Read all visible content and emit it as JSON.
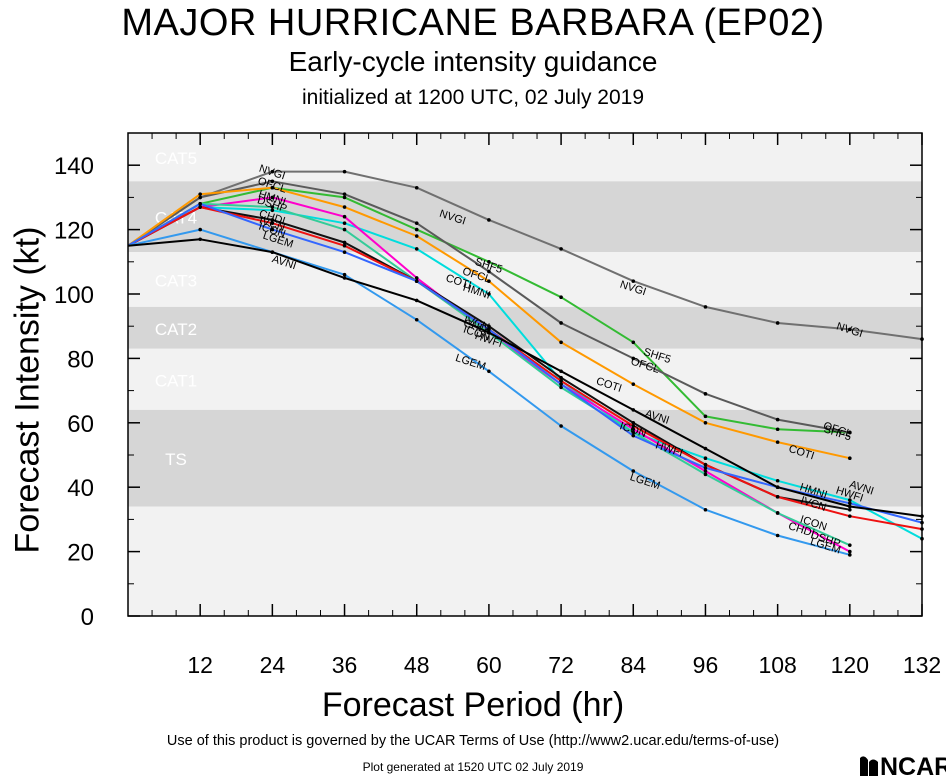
{
  "chart_data": {
    "type": "line",
    "title": "MAJOR HURRICANE BARBARA (EP02)",
    "subtitle": "Early-cycle intensity guidance",
    "subtitle2": "initialized at 1200 UTC, 02 July 2019",
    "xlabel": "Forecast Period (hr)",
    "ylabel": "Forecast Intensity (kt)",
    "xlim": [
      0,
      132
    ],
    "ylim": [
      0,
      150
    ],
    "xticks": [
      12,
      24,
      36,
      48,
      60,
      72,
      84,
      96,
      108,
      120,
      132
    ],
    "yticks": [
      0,
      20,
      40,
      60,
      80,
      100,
      120,
      140
    ],
    "categories": [
      {
        "name": "CAT5",
        "min": 135,
        "max": 150,
        "color": "#f2f2f2"
      },
      {
        "name": "CAT4",
        "min": 113,
        "max": 135,
        "color": "#d6d6d6"
      },
      {
        "name": "CAT3",
        "min": 96,
        "max": 113,
        "color": "#f2f2f2"
      },
      {
        "name": "CAT2",
        "min": 83,
        "max": 96,
        "color": "#d6d6d6"
      },
      {
        "name": "CAT1",
        "min": 64,
        "max": 83,
        "color": "#f2f2f2"
      },
      {
        "name": "TS",
        "min": 34,
        "max": 64,
        "color": "#d6d6d6"
      },
      {
        "name": "",
        "min": 0,
        "max": 34,
        "color": "#f2f2f2"
      }
    ],
    "series": [
      {
        "name": "NVGI",
        "color": "#707070",
        "x": [
          0,
          12,
          24,
          36,
          48,
          60,
          72,
          84,
          96,
          108,
          120,
          132
        ],
        "values": [
          115,
          130,
          138,
          138,
          133,
          123,
          114,
          104,
          96,
          91,
          89,
          86
        ],
        "labels": [
          {
            "x": 24,
            "y": 138
          },
          {
            "x": 54,
            "y": 124
          },
          {
            "x": 84,
            "y": 102
          },
          {
            "x": 120,
            "y": 89
          }
        ]
      },
      {
        "name": "SHF5",
        "color": "#33bb33",
        "x": [
          0,
          12,
          24,
          36,
          48,
          60,
          72,
          84,
          96,
          108,
          120
        ],
        "values": [
          115,
          128,
          133,
          130,
          120,
          110,
          99,
          85,
          62,
          58,
          57
        ],
        "labels": [
          {
            "x": 60,
            "y": 109
          },
          {
            "x": 88,
            "y": 81
          },
          {
            "x": 118,
            "y": 57
          }
        ]
      },
      {
        "name": "OFCL",
        "color": "#5a5a5a",
        "x": [
          0,
          12,
          24,
          36,
          48,
          60,
          72,
          84,
          96,
          108,
          120
        ],
        "values": [
          115,
          130,
          135,
          131,
          122,
          107,
          91,
          80,
          69,
          61,
          57
        ],
        "labels": [
          {
            "x": 24,
            "y": 134
          },
          {
            "x": 58,
            "y": 106
          },
          {
            "x": 86,
            "y": 78
          },
          {
            "x": 118,
            "y": 58
          }
        ]
      },
      {
        "name": "COTI",
        "color": "#ff9900",
        "x": [
          0,
          12,
          24,
          36,
          48,
          60,
          72,
          84,
          96,
          108,
          120
        ],
        "values": [
          115,
          131,
          133,
          127,
          118,
          104,
          85,
          72,
          60,
          54,
          49
        ],
        "labels": [
          {
            "x": 55,
            "y": 104
          },
          {
            "x": 80,
            "y": 72
          },
          {
            "x": 112,
            "y": 51
          }
        ]
      },
      {
        "name": "HMNI",
        "color": "#00dddd",
        "x": [
          0,
          12,
          24,
          36,
          48,
          60,
          72,
          84,
          96,
          108,
          120,
          132
        ],
        "values": [
          115,
          127,
          126,
          122,
          114,
          100,
          73,
          57,
          49,
          42,
          36,
          24
        ],
        "labels": [
          {
            "x": 24,
            "y": 130
          },
          {
            "x": 58,
            "y": 101
          },
          {
            "x": 114,
            "y": 39
          }
        ]
      },
      {
        "name": "DSHP",
        "color": "#ff00cc",
        "x": [
          0,
          12,
          24,
          36,
          48,
          60,
          72,
          84,
          96,
          108,
          120
        ],
        "values": [
          115,
          127,
          130,
          124,
          105,
          88,
          72,
          58,
          45,
          32,
          20
        ],
        "labels": [
          {
            "x": 24,
            "y": 128
          },
          {
            "x": 116,
            "y": 24
          }
        ]
      },
      {
        "name": "CHDI",
        "color": "#33cc99",
        "x": [
          0,
          12,
          24,
          36,
          48,
          60,
          72,
          84,
          96,
          108,
          120
        ],
        "values": [
          115,
          128,
          127,
          120,
          104,
          88,
          71,
          57,
          44,
          32,
          22
        ],
        "labels": [
          {
            "x": 24,
            "y": 124
          },
          {
            "x": 58,
            "y": 90
          },
          {
            "x": 112,
            "y": 27
          }
        ]
      },
      {
        "name": "IVCN",
        "color": "#111111",
        "x": [
          0,
          12,
          24,
          36,
          48,
          60,
          72,
          84,
          96,
          108,
          120
        ],
        "values": [
          115,
          127,
          123,
          116,
          104,
          90,
          74,
          60,
          47,
          37,
          33
        ],
        "labels": [
          {
            "x": 24,
            "y": 122
          },
          {
            "x": 58,
            "y": 91
          },
          {
            "x": 114,
            "y": 35
          }
        ]
      },
      {
        "name": "ICON",
        "color": "#ee1111",
        "x": [
          0,
          12,
          24,
          36,
          48,
          60,
          72,
          84,
          96,
          108,
          120,
          132
        ],
        "values": [
          115,
          127,
          122,
          115,
          104,
          89,
          73,
          59,
          47,
          37,
          31,
          27
        ],
        "labels": [
          {
            "x": 24,
            "y": 120
          },
          {
            "x": 58,
            "y": 88
          },
          {
            "x": 84,
            "y": 58
          },
          {
            "x": 114,
            "y": 29
          }
        ]
      },
      {
        "name": "HWFI",
        "color": "#3366ff",
        "x": [
          0,
          12,
          24,
          36,
          48,
          60,
          72,
          84,
          96,
          108,
          120,
          132
        ],
        "values": [
          115,
          128,
          120,
          113,
          104,
          89,
          72,
          56,
          46,
          40,
          35,
          29
        ],
        "labels": [
          {
            "x": 60,
            "y": 86
          },
          {
            "x": 90,
            "y": 52
          },
          {
            "x": 120,
            "y": 38
          }
        ]
      },
      {
        "name": "LGEM",
        "color": "#3399ee",
        "x": [
          0,
          12,
          24,
          36,
          48,
          60,
          72,
          84,
          96,
          108,
          120
        ],
        "values": [
          115,
          120,
          113,
          106,
          92,
          76,
          59,
          45,
          33,
          25,
          19
        ],
        "labels": [
          {
            "x": 25,
            "y": 117
          },
          {
            "x": 57,
            "y": 79
          },
          {
            "x": 86,
            "y": 42
          },
          {
            "x": 116,
            "y": 22
          }
        ]
      },
      {
        "name": "AVNI",
        "color": "#000000",
        "x": [
          0,
          12,
          24,
          36,
          48,
          60,
          72,
          84,
          96,
          108,
          120,
          132
        ],
        "values": [
          115,
          117,
          113,
          105,
          98,
          88,
          76,
          64,
          52,
          40,
          34,
          31
        ],
        "labels": [
          {
            "x": 26,
            "y": 110
          },
          {
            "x": 88,
            "y": 62
          },
          {
            "x": 122,
            "y": 40
          }
        ]
      }
    ]
  },
  "footer": {
    "terms": "Use of this product is governed by the UCAR Terms of Use (http://www2.ucar.edu/terms-of-use)",
    "generated": "Plot generated at 1520 UTC   02 July 2019",
    "logo": "NCAR"
  }
}
